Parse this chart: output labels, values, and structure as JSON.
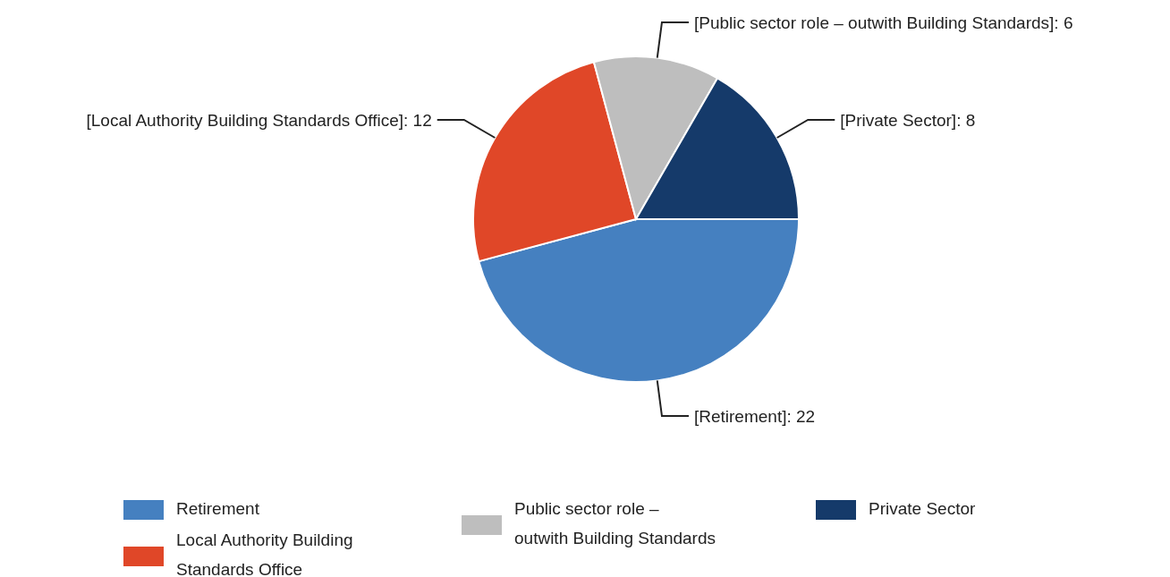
{
  "chart_data": {
    "type": "pie",
    "categories": [
      "Retirement",
      "Local Authority Building Standards Office",
      "Public sector role – outwith Building Standards",
      "Private Sector"
    ],
    "values": [
      22,
      12,
      6,
      8
    ],
    "colors": [
      "#4580c0",
      "#e04728",
      "#bebebe",
      "#153a6a"
    ],
    "value_labels": [
      "[Retirement]: 22",
      "[Local Authority Building Standards Office]: 12",
      "[Public sector role – outwith Building Standards]: 6",
      "[Private Sector]: 8"
    ],
    "legend": "bottom"
  }
}
